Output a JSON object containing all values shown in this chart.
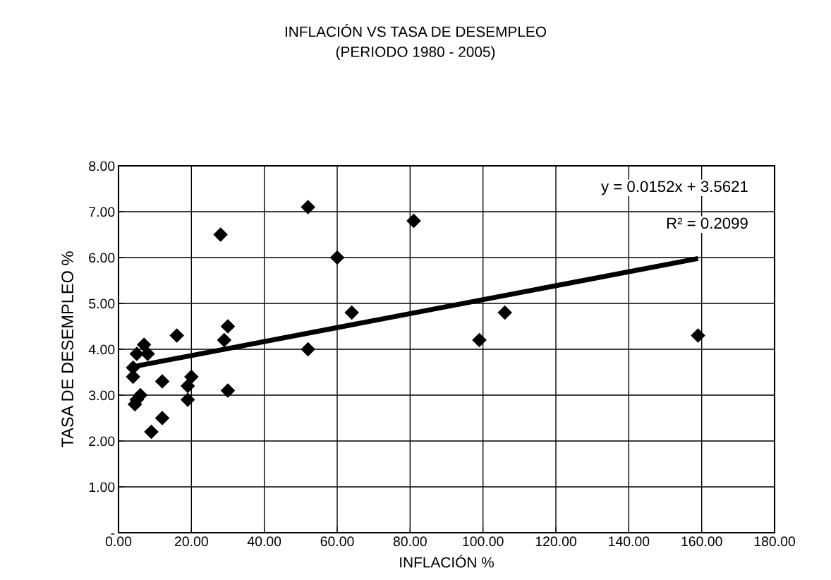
{
  "chart_data": {
    "type": "scatter",
    "title": "INFLACIÓN VS TASA DE DESEMPLEO\n(PERIODO 1980 - 2005)",
    "xlabel": "INFLACIÓN %",
    "ylabel": "TASA DE DESEMPLEO %",
    "series": [
      {
        "color": "#000000",
        "marker": "diamond",
        "x": [
          4,
          4,
          5,
          4.5,
          5,
          6,
          7,
          8,
          9,
          12,
          12,
          16,
          19,
          19,
          20,
          28,
          29,
          30,
          30,
          52,
          52,
          60,
          64,
          81,
          99,
          106,
          159
        ],
        "values": [
          3.6,
          3.4,
          3.9,
          2.8,
          2.9,
          3.0,
          4.1,
          3.9,
          2.2,
          3.3,
          2.5,
          4.3,
          3.2,
          2.9,
          3.4,
          6.5,
          4.2,
          4.5,
          3.1,
          7.1,
          4.0,
          6.0,
          4.8,
          6.8,
          4.2,
          4.8,
          4.3
        ]
      },
      {
        "type": "line",
        "color": "#000000",
        "x": [
          4,
          159
        ],
        "values": [
          3.62,
          5.98
        ]
      }
    ],
    "xlim": [
      0,
      180
    ],
    "xticks": [
      {
        "value": 0,
        "label": "0.00"
      },
      {
        "value": 20,
        "label": "20.00"
      },
      {
        "value": 40,
        "label": "40.00"
      },
      {
        "value": 60,
        "label": "60.00"
      },
      {
        "value": 80,
        "label": "80.00"
      },
      {
        "value": 100,
        "label": "100.00"
      },
      {
        "value": 120,
        "label": "120.00"
      },
      {
        "value": 140,
        "label": "140.00"
      },
      {
        "value": 160,
        "label": "160.00"
      },
      {
        "value": 180,
        "label": "180.00"
      }
    ],
    "ylim": [
      0,
      8
    ],
    "yticks": [
      {
        "value": 0,
        "label": "-"
      },
      {
        "value": 1,
        "label": "1.00"
      },
      {
        "value": 2,
        "label": "2.00"
      },
      {
        "value": 3,
        "label": "3.00"
      },
      {
        "value": 4,
        "label": "4.00"
      },
      {
        "value": 5,
        "label": "5.00"
      },
      {
        "value": 6,
        "label": "6.00"
      },
      {
        "value": 7,
        "label": "7.00"
      },
      {
        "value": 8,
        "label": "8.00"
      }
    ],
    "grid": true,
    "legend": false,
    "annotations": [
      "y = 0.0152x + 3.5621",
      "R² = 0.2099"
    ]
  }
}
